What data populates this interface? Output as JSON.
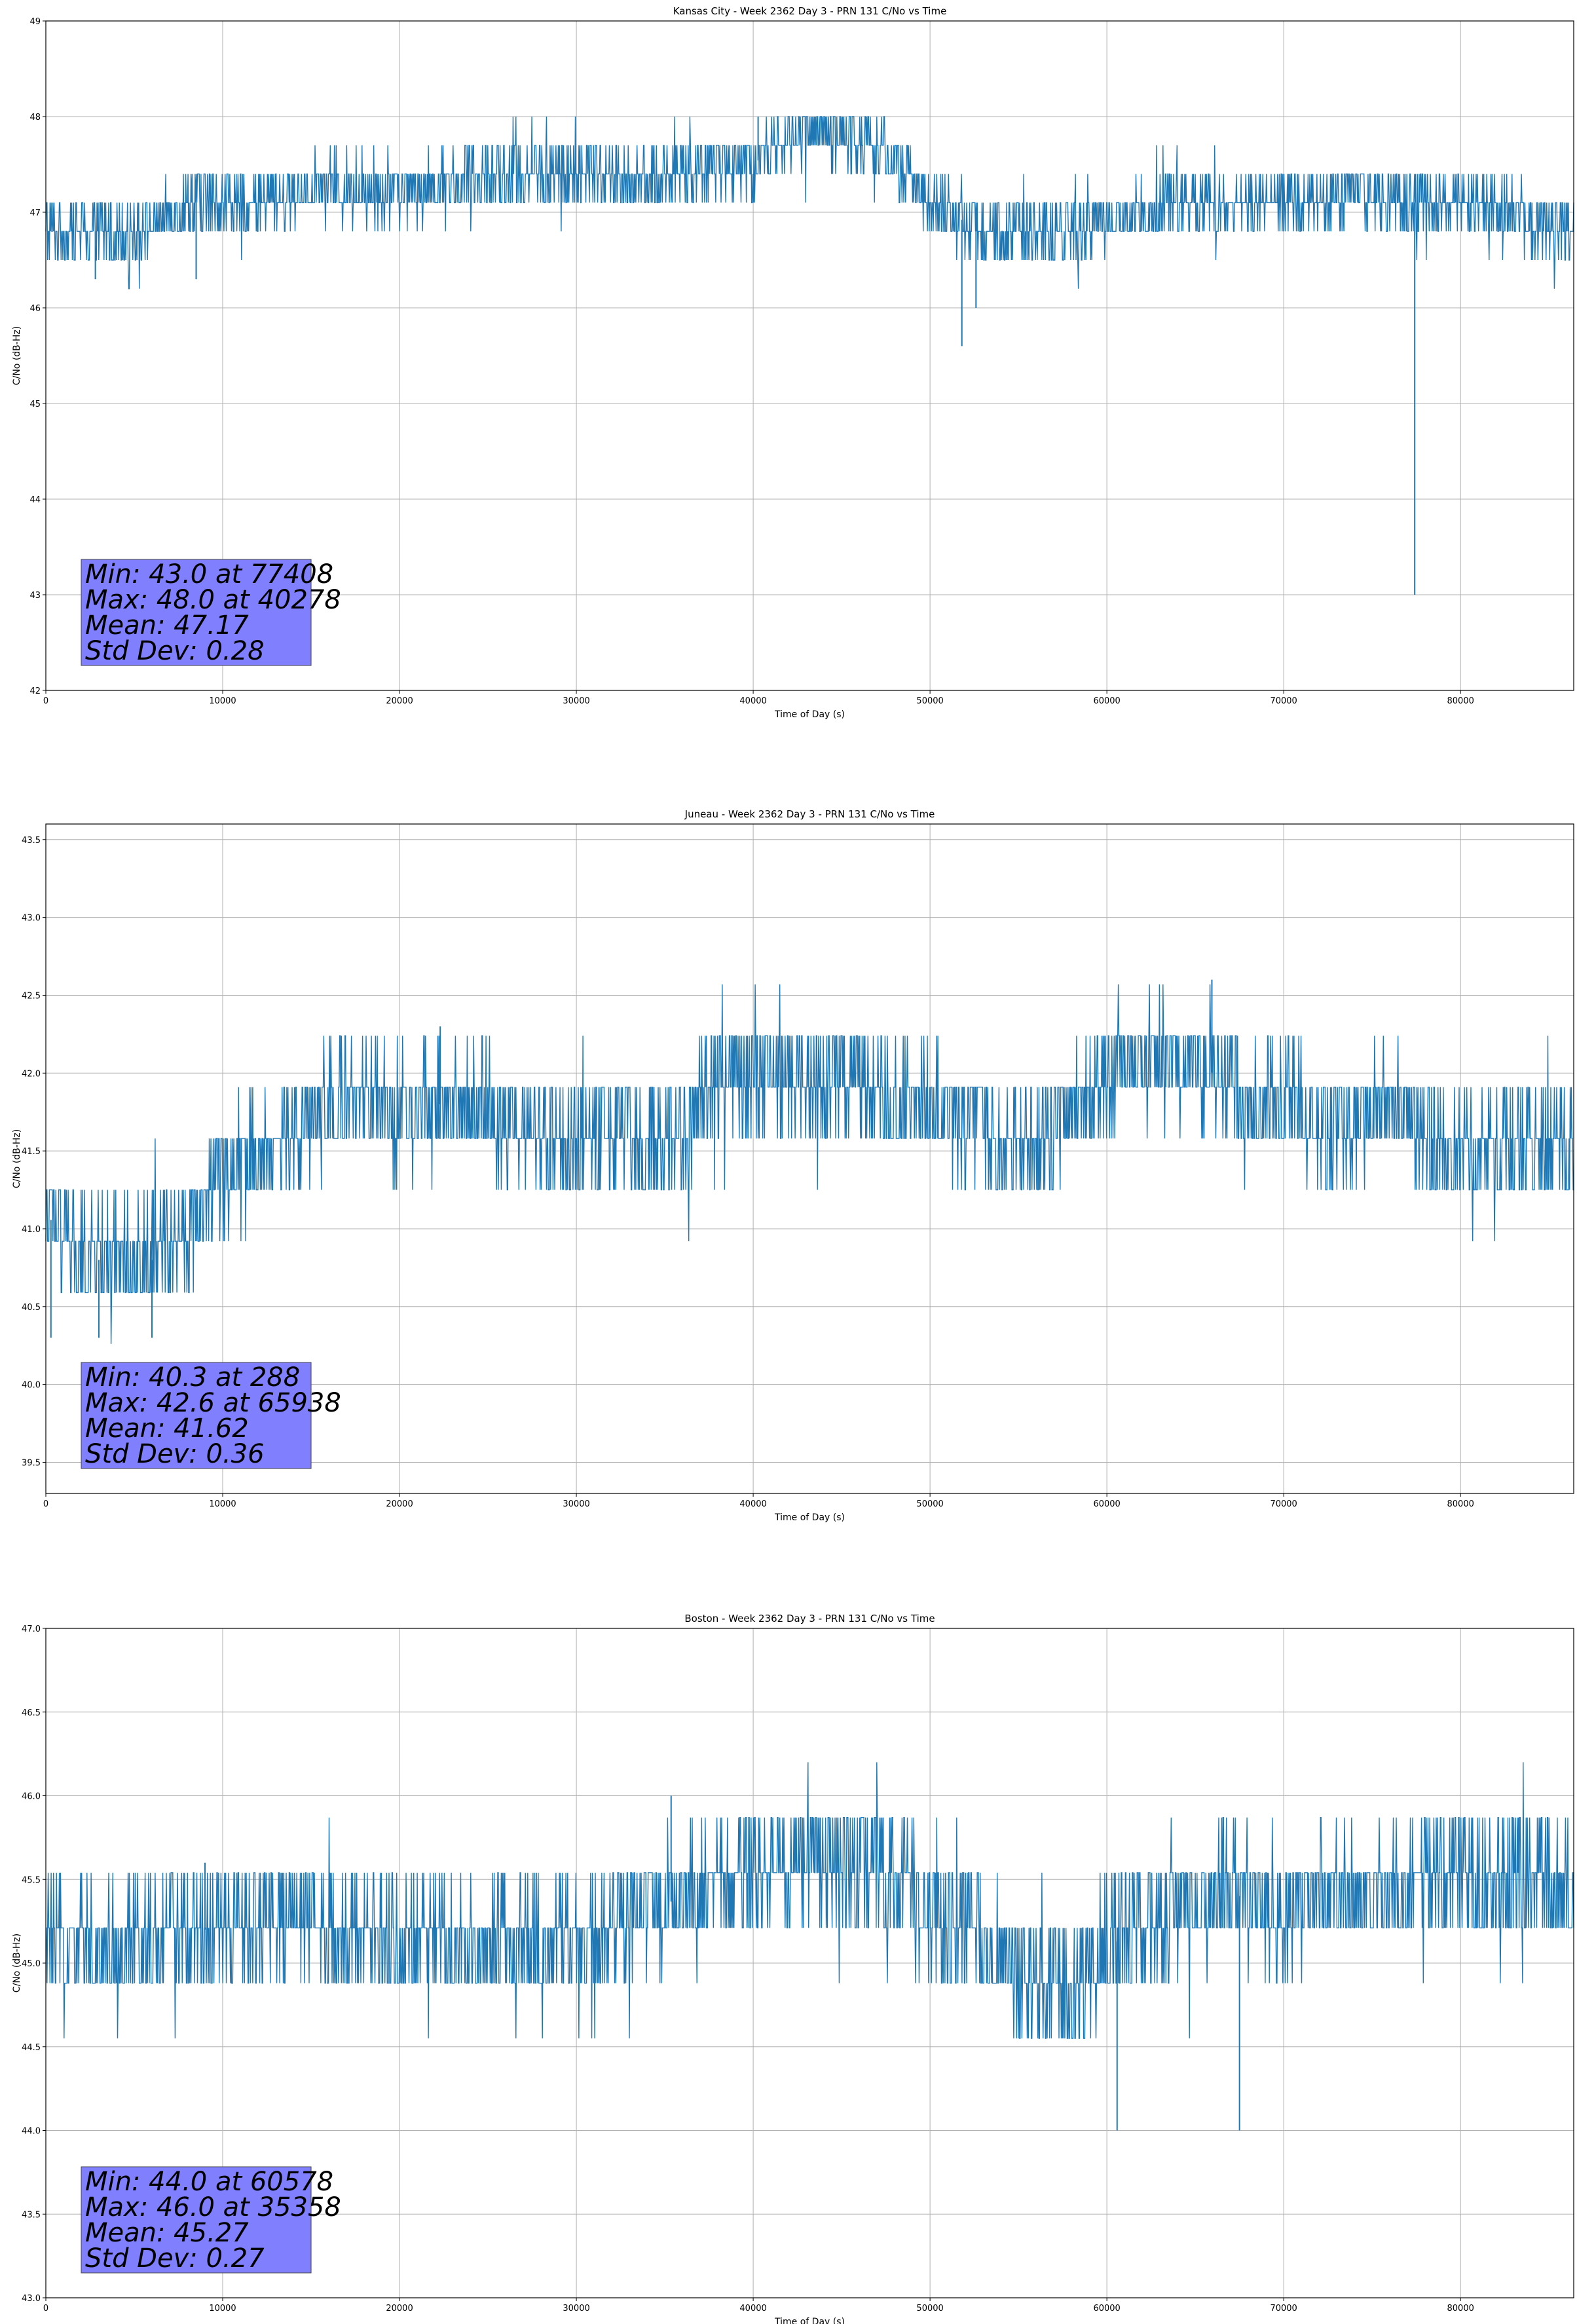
{
  "figure": {
    "background": "#ffffff"
  },
  "chart_data": [
    {
      "type": "line",
      "title": "Kansas City - Week 2362 Day 3 - PRN 131 C/No vs Time",
      "xlabel": "Time of Day (s)",
      "ylabel": "C/No (dB-Hz)",
      "xlim": [
        0,
        86400
      ],
      "ylim": [
        42,
        49
      ],
      "xticks": [
        0,
        10000,
        20000,
        30000,
        40000,
        50000,
        60000,
        70000,
        80000
      ],
      "yticks": [
        42,
        43,
        44,
        45,
        46,
        47,
        48,
        49
      ],
      "ytick_labels": [
        "42",
        "43",
        "44",
        "45",
        "46",
        "47",
        "48",
        "49"
      ],
      "grid": true,
      "line_color": "#1f77b4",
      "series": [
        {
          "x": [
            0,
            2000,
            4000,
            6000,
            8000,
            10000,
            12000,
            14000,
            16000,
            18000,
            20000,
            22000,
            24000,
            26000,
            28000,
            30000,
            32000,
            34000,
            36000,
            38000,
            40000,
            42000,
            44000,
            46000,
            48000,
            50000,
            52000,
            54000,
            56000,
            58000,
            60000,
            62000,
            64000,
            66000,
            68000,
            70000,
            72000,
            74000,
            76000,
            78000,
            80000,
            82000,
            84000,
            86400
          ],
          "y": [
            46.8,
            46.8,
            46.8,
            46.9,
            47.1,
            47.1,
            47.1,
            47.2,
            47.3,
            47.2,
            47.2,
            47.3,
            47.3,
            47.4,
            47.4,
            47.4,
            47.4,
            47.3,
            47.4,
            47.5,
            47.5,
            47.8,
            47.8,
            47.8,
            47.5,
            47.1,
            46.9,
            46.8,
            46.8,
            46.8,
            46.9,
            47.0,
            47.1,
            47.1,
            47.1,
            47.1,
            47.1,
            47.2,
            47.1,
            47.1,
            47.1,
            47.1,
            46.9,
            46.8
          ]
        }
      ],
      "extremes": [
        {
          "x": 77408,
          "y": 43.0
        },
        {
          "x": 40278,
          "y": 48.0
        },
        {
          "x": 51800,
          "y": 45.6
        },
        {
          "x": 52600,
          "y": 46.0
        },
        {
          "x": 8500,
          "y": 46.3
        },
        {
          "x": 2800,
          "y": 46.3
        }
      ],
      "stats": [
        "Min: 43.0 at 77408",
        "Max: 48.0 at 40278",
        "Mean: 47.17",
        "Std Dev: 0.28"
      ]
    },
    {
      "type": "line",
      "title": "Juneau - Week 2362 Day 3 - PRN 131 C/No vs Time",
      "xlabel": "Time of Day (s)",
      "ylabel": "C/No (dB-Hz)",
      "xlim": [
        0,
        86400
      ],
      "ylim": [
        39.3,
        43.6
      ],
      "xticks": [
        0,
        10000,
        20000,
        30000,
        40000,
        50000,
        60000,
        70000,
        80000
      ],
      "yticks": [
        39.5,
        40.0,
        40.5,
        41.0,
        41.5,
        42.0,
        42.5,
        43.0,
        43.5
      ],
      "ytick_labels": [
        "39.5",
        "40.0",
        "40.5",
        "41.0",
        "41.5",
        "42.0",
        "42.5",
        "43.0",
        "43.5"
      ],
      "grid": true,
      "line_color": "#1f77b4",
      "series": [
        {
          "x": [
            0,
            2000,
            4000,
            6000,
            8000,
            10000,
            12000,
            14000,
            16000,
            18000,
            20000,
            22000,
            24000,
            26000,
            28000,
            30000,
            32000,
            34000,
            36000,
            38000,
            40000,
            42000,
            44000,
            46000,
            48000,
            50000,
            52000,
            54000,
            56000,
            58000,
            60000,
            62000,
            64000,
            66000,
            68000,
            70000,
            72000,
            74000,
            76000,
            78000,
            80000,
            82000,
            84000,
            86400
          ],
          "y": [
            41.1,
            40.8,
            40.8,
            40.8,
            41.0,
            41.4,
            41.5,
            41.6,
            41.8,
            41.8,
            41.7,
            41.8,
            41.8,
            41.7,
            41.6,
            41.5,
            41.6,
            41.5,
            41.6,
            42.0,
            42.0,
            42.0,
            42.0,
            42.0,
            41.8,
            41.8,
            41.7,
            41.5,
            41.6,
            41.8,
            42.0,
            42.1,
            42.1,
            42.0,
            41.8,
            41.8,
            41.7,
            41.7,
            41.8,
            41.6,
            41.5,
            41.5,
            41.5,
            41.5
          ]
        }
      ],
      "extremes": [
        {
          "x": 288,
          "y": 40.3
        },
        {
          "x": 65938,
          "y": 42.6
        },
        {
          "x": 22300,
          "y": 42.3
        },
        {
          "x": 3000,
          "y": 40.3
        },
        {
          "x": 6000,
          "y": 40.3
        }
      ],
      "stats": [
        "Min: 40.3 at 288",
        "Max: 42.6 at 65938",
        "Mean: 41.62",
        "Std Dev: 0.36"
      ]
    },
    {
      "type": "line",
      "title": "Boston - Week 2362 Day 3 - PRN 131 C/No vs Time",
      "xlabel": "Time of Day (s)",
      "ylabel": "C/No (dB-Hz)",
      "xlim": [
        0,
        86400
      ],
      "ylim": [
        43.0,
        47.0
      ],
      "xticks": [
        0,
        10000,
        20000,
        30000,
        40000,
        50000,
        60000,
        70000,
        80000
      ],
      "yticks": [
        43.0,
        43.5,
        44.0,
        44.5,
        45.0,
        45.5,
        46.0,
        46.5,
        47.0
      ],
      "ytick_labels": [
        "43.0",
        "43.5",
        "44.0",
        "44.5",
        "45.0",
        "45.5",
        "46.0",
        "46.5",
        "47.0"
      ],
      "grid": true,
      "line_color": "#1f77b4",
      "series": [
        {
          "x": [
            0,
            2000,
            4000,
            6000,
            8000,
            10000,
            12000,
            14000,
            16000,
            18000,
            20000,
            22000,
            24000,
            26000,
            28000,
            30000,
            32000,
            34000,
            36000,
            38000,
            40000,
            42000,
            44000,
            46000,
            48000,
            50000,
            52000,
            54000,
            56000,
            58000,
            60000,
            62000,
            64000,
            66000,
            68000,
            70000,
            72000,
            74000,
            76000,
            78000,
            80000,
            82000,
            84000,
            86400
          ],
          "y": [
            45.1,
            45.1,
            45.1,
            45.1,
            45.2,
            45.2,
            45.2,
            45.3,
            45.2,
            45.1,
            45.1,
            45.1,
            45.1,
            45.1,
            45.1,
            45.1,
            45.2,
            45.3,
            45.4,
            45.4,
            45.5,
            45.6,
            45.6,
            45.6,
            45.5,
            45.3,
            45.2,
            45.0,
            44.9,
            44.8,
            45.1,
            45.2,
            45.3,
            45.4,
            45.4,
            45.3,
            45.4,
            45.4,
            45.4,
            45.5,
            45.5,
            45.5,
            45.5,
            45.4
          ]
        }
      ],
      "extremes": [
        {
          "x": 60578,
          "y": 44.0
        },
        {
          "x": 35358,
          "y": 46.0
        },
        {
          "x": 67500,
          "y": 44.0
        },
        {
          "x": 9000,
          "y": 45.6
        }
      ],
      "stats": [
        "Min: 44.0 at 60578",
        "Max: 46.0 at 35358",
        "Mean: 45.27",
        "Std Dev: 0.27"
      ]
    }
  ]
}
